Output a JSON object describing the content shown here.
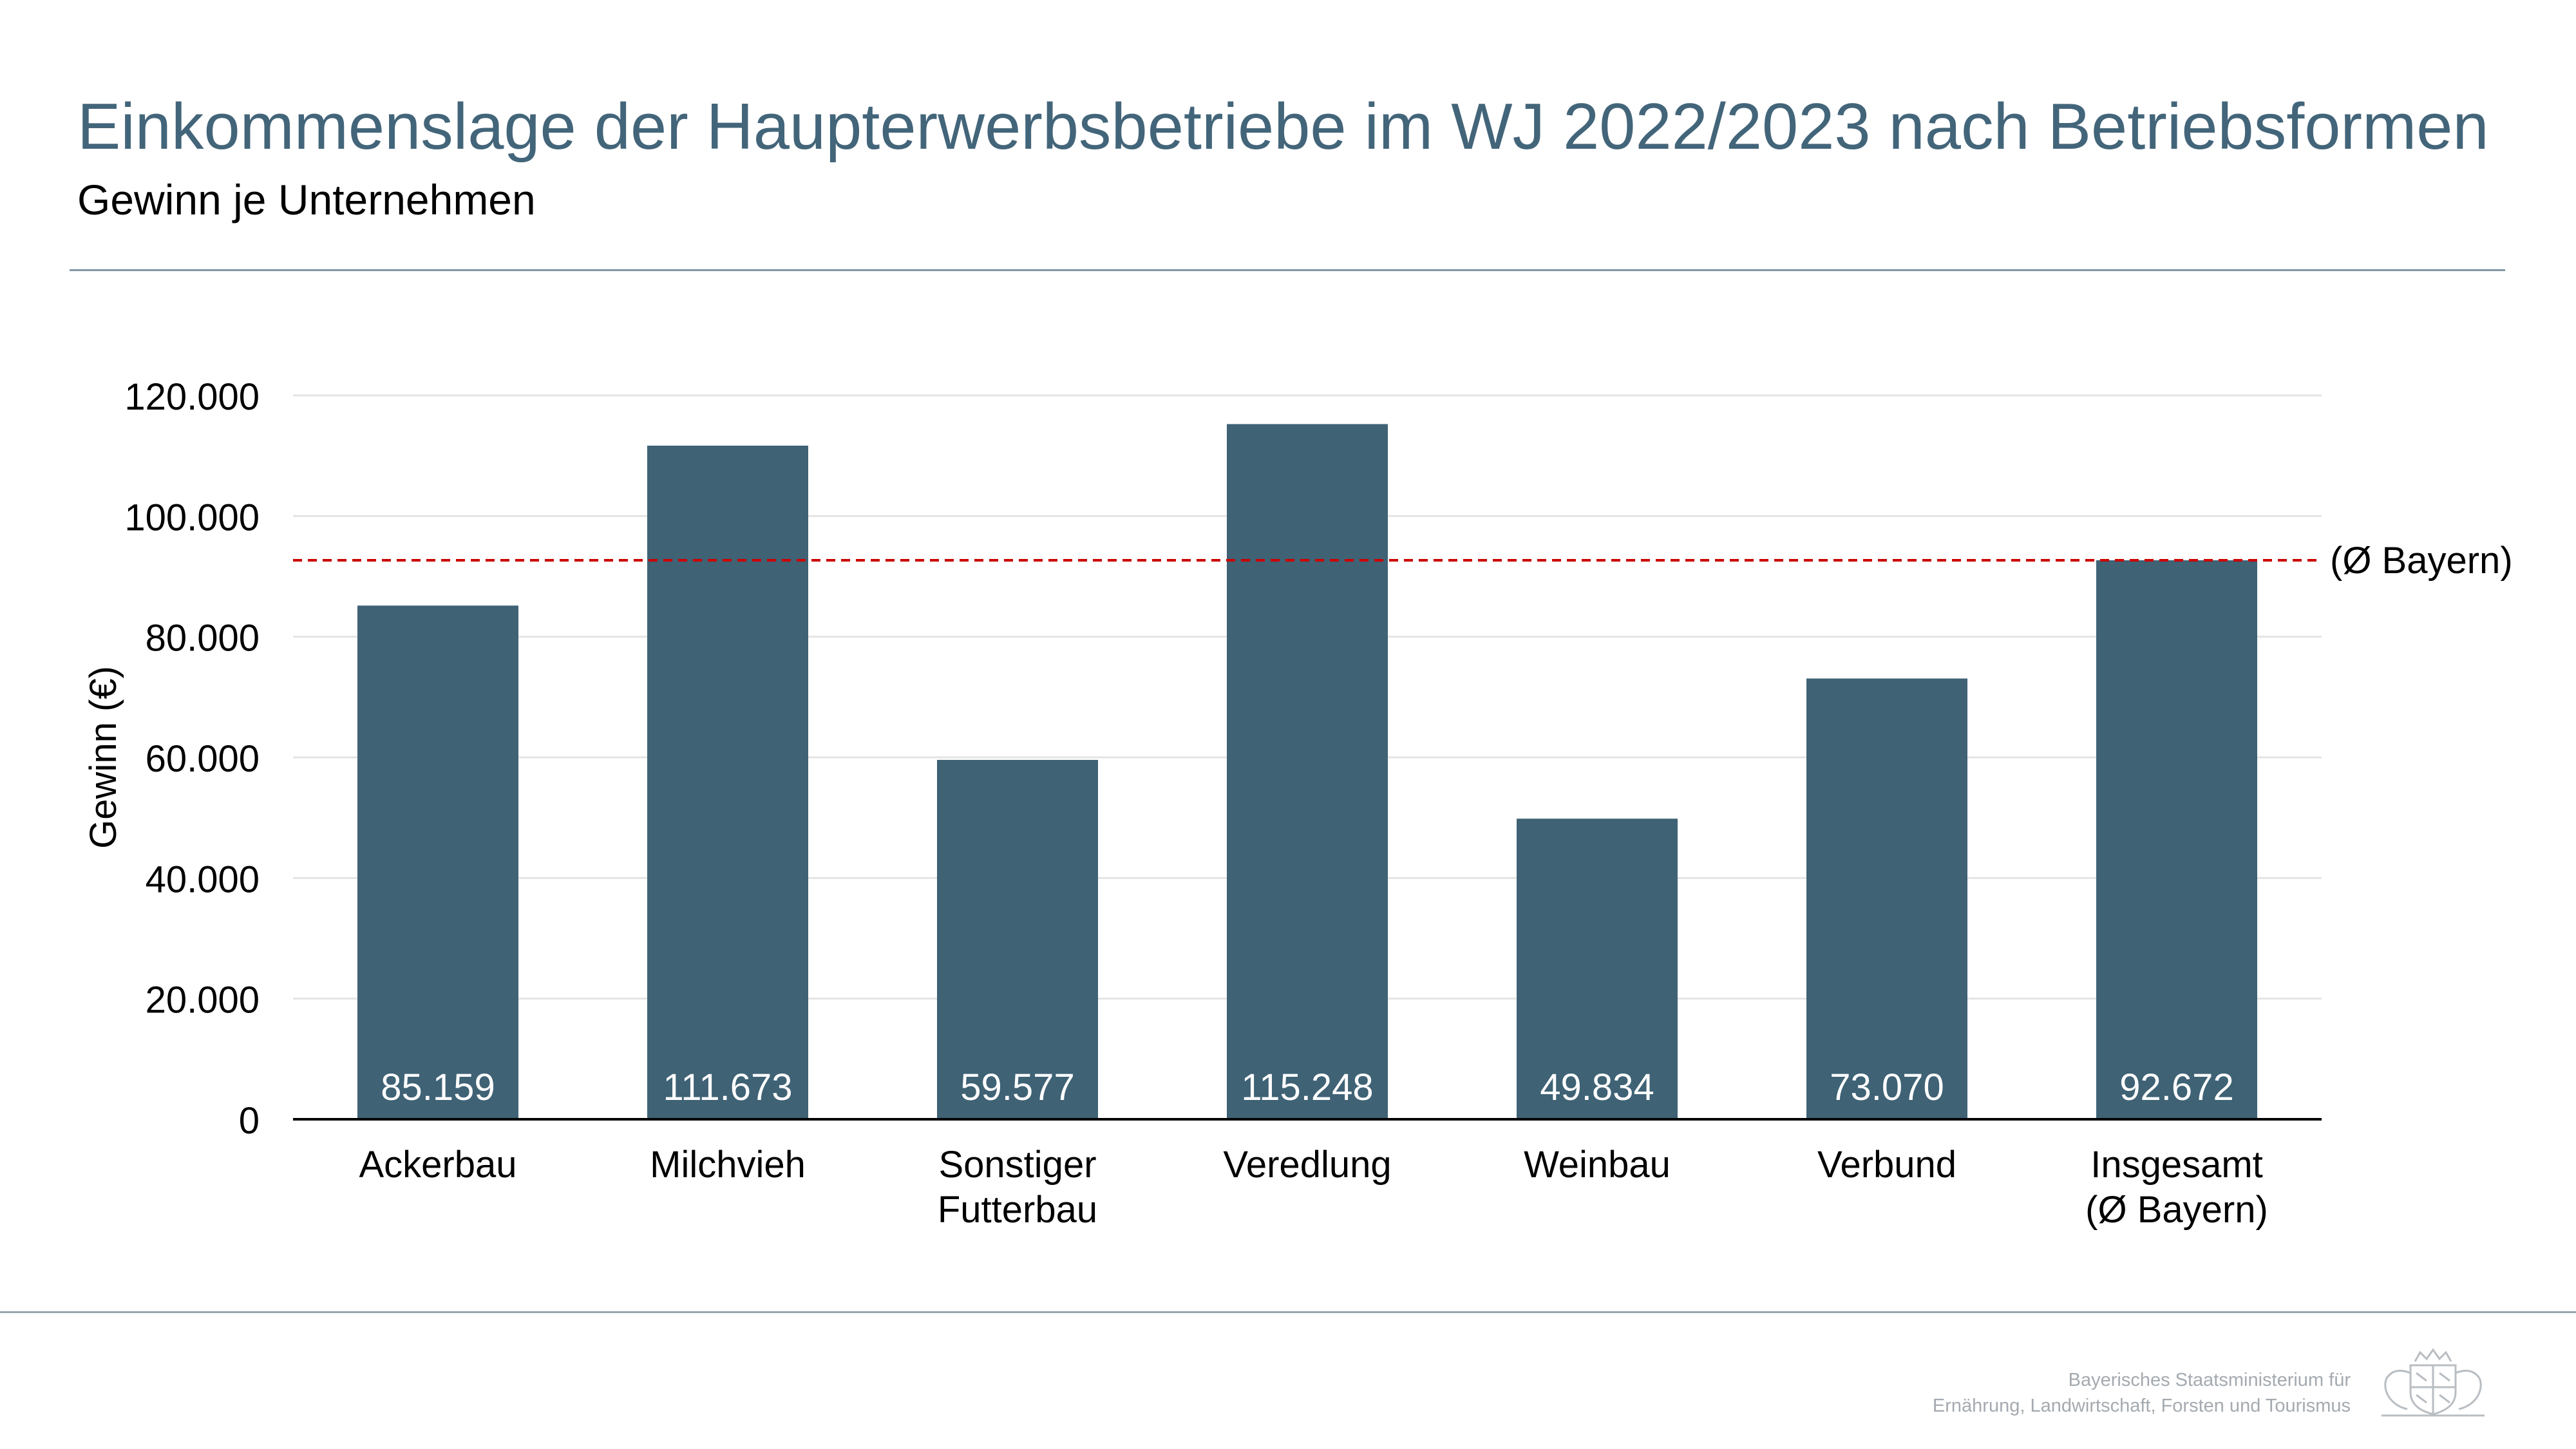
{
  "header": {
    "title": "Einkommenslage der Haupterwerbsbetriebe im WJ 2022/2023 nach Betriebsformen",
    "subtitle": "Gewinn je Unternehmen"
  },
  "chart_data": {
    "type": "bar",
    "categories": [
      [
        "Ackerbau"
      ],
      [
        "Milchvieh"
      ],
      [
        "Sonstiger",
        "Futterbau"
      ],
      [
        "Veredlung"
      ],
      [
        "Weinbau"
      ],
      [
        "Verbund"
      ],
      [
        "Insgesamt",
        "(Ø Bayern)"
      ]
    ],
    "values": [
      85159,
      111673,
      59577,
      115248,
      49834,
      73070,
      92672
    ],
    "value_labels": [
      "85.159",
      "111.673",
      "59.577",
      "115.248",
      "49.834",
      "73.070",
      "92.672"
    ],
    "ylabel": "Gewinn (€)",
    "ylim": [
      0,
      120000
    ],
    "yticks": [
      0,
      20000,
      40000,
      60000,
      80000,
      100000,
      120000
    ],
    "ytick_labels": [
      "0",
      "20.000",
      "40.000",
      "60.000",
      "80.000",
      "100.000",
      "120.000"
    ],
    "grid": true,
    "bar_color": "#3f6275",
    "reference_line": {
      "value": 92672,
      "label": "(Ø Bayern)",
      "color": "#cc0000",
      "style": "dashed"
    }
  },
  "footer": {
    "line1": "Bayerisches Staatsministerium für",
    "line2": "Ernährung, Landwirtschaft, Forsten und Tourismus",
    "logo": "bavarian-coat-of-arms"
  }
}
